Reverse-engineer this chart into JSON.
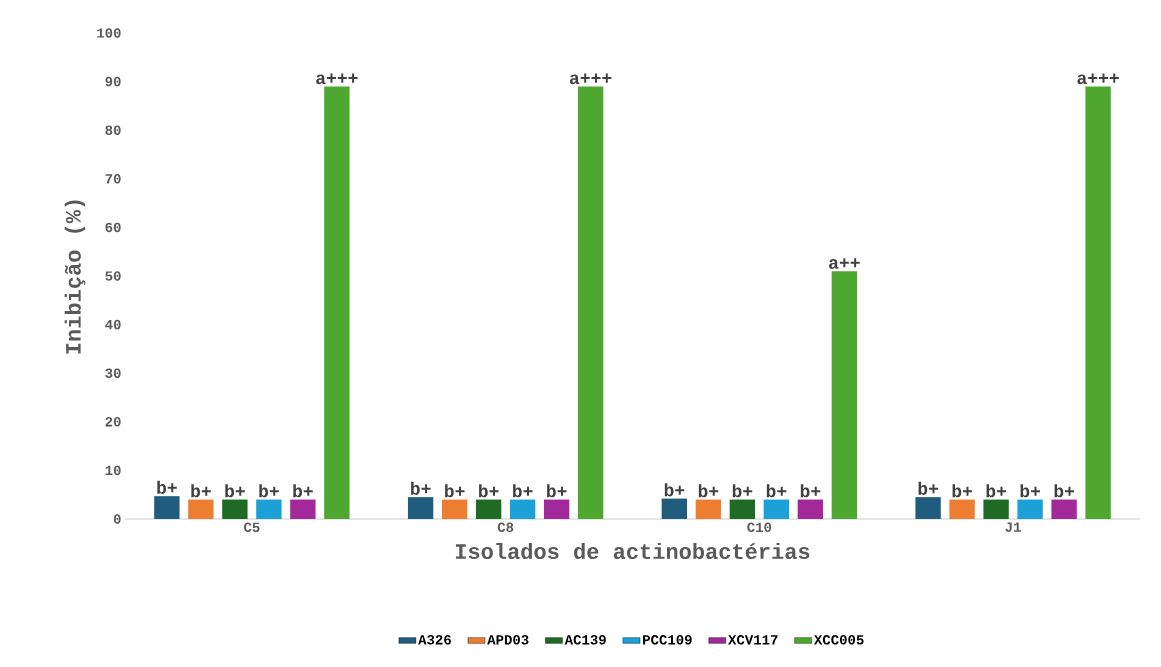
{
  "chart_data": {
    "type": "bar",
    "xlabel": "Isolados de actinobactérias",
    "ylabel": "Inibição (%)",
    "categories": [
      "C5",
      "C8",
      "C10",
      "J1"
    ],
    "series": [
      {
        "name": "A326",
        "color": "#1f5c7e",
        "values": [
          4.7,
          4.5,
          4.2,
          4.5
        ],
        "value_labels": [
          "b+",
          "b+",
          "b+",
          "b+"
        ]
      },
      {
        "name": "APD03",
        "color": "#ed7d31",
        "values": [
          4,
          4,
          4,
          4
        ],
        "value_labels": [
          "b+",
          "b+",
          "b+",
          "b+"
        ]
      },
      {
        "name": "AC139",
        "color": "#1e6b26",
        "values": [
          4,
          4,
          4,
          4
        ],
        "value_labels": [
          "b+",
          "b+",
          "b+",
          "b+"
        ]
      },
      {
        "name": "PCC109",
        "color": "#1ba1d8",
        "values": [
          4,
          4,
          4,
          4
        ],
        "value_labels": [
          "b+",
          "b+",
          "b+",
          "b+"
        ]
      },
      {
        "name": "XCV117",
        "color": "#a3299a",
        "values": [
          4,
          4,
          4,
          4
        ],
        "value_labels": [
          "b+",
          "b+",
          "b+",
          "b+"
        ]
      },
      {
        "name": "XCC005",
        "color": "#4ea72e",
        "values": [
          89,
          89,
          51,
          89
        ],
        "value_labels": [
          "a+++",
          "a+++",
          "a++",
          "a+++"
        ]
      }
    ],
    "ylim": [
      0,
      100
    ],
    "yticks": [
      0,
      10,
      20,
      30,
      40,
      50,
      60,
      70,
      80,
      90,
      100
    ],
    "grid": false,
    "legend": "bottom"
  }
}
